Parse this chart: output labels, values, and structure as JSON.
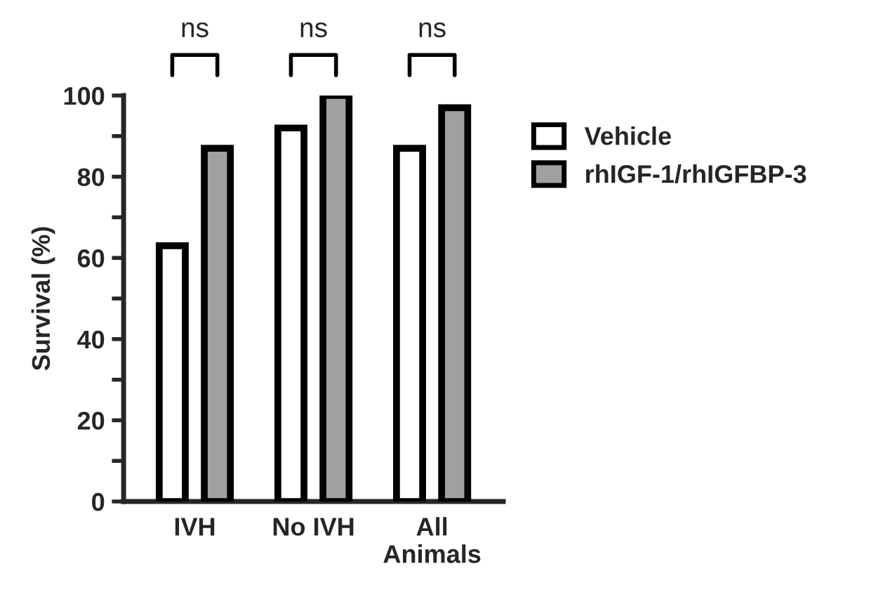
{
  "chart_data": {
    "type": "bar",
    "ylabel": "Survival (%)",
    "categories": [
      "IVH",
      "No IVH",
      "All\nAnimals"
    ],
    "series": [
      {
        "name": "Vehicle",
        "color": "#ffffff",
        "values": [
          63,
          92,
          87
        ]
      },
      {
        "name": "rhIGF-1/rhIGFBP-3",
        "color": "#a0a0a0",
        "values": [
          87,
          100,
          97
        ]
      }
    ],
    "ylim": [
      0,
      100
    ],
    "yticks": [
      0,
      {
        "value": 10,
        "label": null
      },
      20,
      {
        "value": 30,
        "label": null
      },
      40,
      {
        "value": 50,
        "label": null
      },
      60,
      {
        "value": 70,
        "label": null
      },
      80,
      {
        "value": 90,
        "label": null
      },
      100
    ],
    "annotations": [
      "ns",
      "ns",
      "ns"
    ],
    "legend": "right",
    "grid": false
  }
}
